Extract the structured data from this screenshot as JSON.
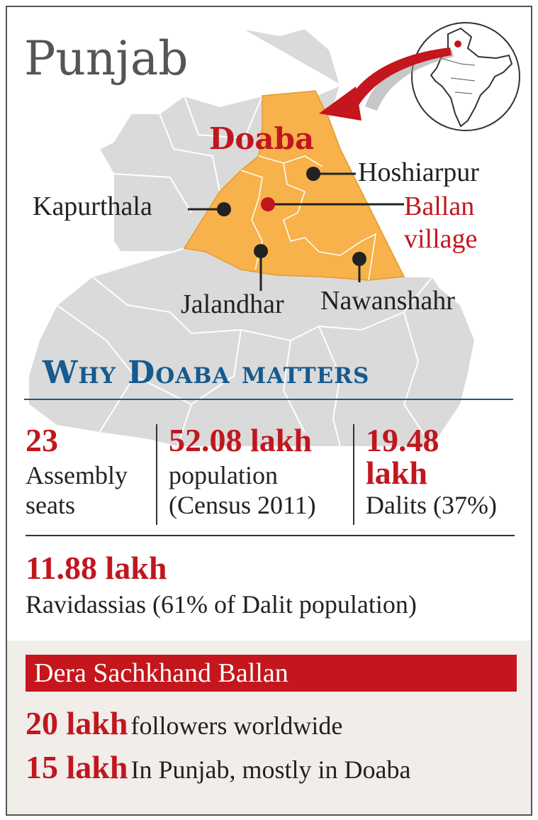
{
  "title": "Punjab",
  "map": {
    "region_label": "Doaba",
    "districts": {
      "hoshiarpur": "Hoshiarpur",
      "kapurthala": "Kapurthala",
      "jalandhar": "Jalandhar",
      "nawanshahr": "Nawanshahr"
    },
    "village_line1": "Ballan",
    "village_line2": "village",
    "colors": {
      "doaba": "#f7b24b",
      "state": "#d9d9d9",
      "border": "#ffffff",
      "marker": "#222222",
      "village": "#c0171f",
      "arrow": "#c4161c"
    }
  },
  "section_heading": "Why Doaba matters",
  "stats": {
    "seats_num": "23",
    "seats_l1": "Assembly",
    "seats_l2": "seats",
    "pop_num": "52.08 lakh",
    "pop_l1": "population",
    "pop_l2": "(Census 2011)",
    "dalit_num1": "19.48",
    "dalit_num2": "lakh",
    "dalit_txt": "Dalits (37%)",
    "ravi_num": "11.88 lakh",
    "ravi_txt": "Ravidassias (61% of Dalit population)"
  },
  "dera": {
    "heading": "Dera Sachkhand Ballan",
    "line1_num": "20 lakh",
    "line1_txt": "followers worldwide",
    "line2_num": "15 lakh",
    "line2_txt": "In Punjab, mostly in Doaba"
  }
}
